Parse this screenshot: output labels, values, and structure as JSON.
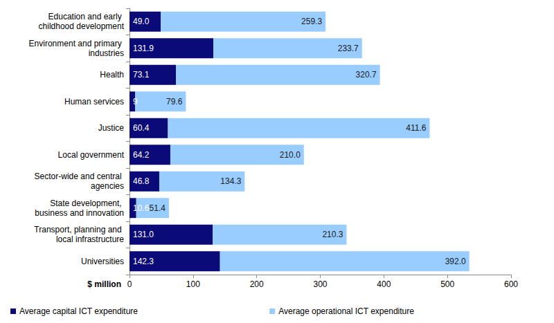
{
  "chart_data": {
    "type": "bar",
    "orientation": "horizontal",
    "stacked": true,
    "data_labels": true,
    "grid": false,
    "legend": "bottom",
    "x_label": "$ million",
    "categories": [
      "Education and early childhood development",
      "Environment and primary industries",
      "Health",
      "Human services",
      "Justice",
      "Local government",
      "Sector-wide and central agencies",
      "State development, business and innovation",
      "Transport, planning and local infrastructure",
      "Universities"
    ],
    "series": [
      {
        "name": "Average capital ICT expenditure",
        "color": "#0a0a78",
        "values": [
          49.0,
          131.9,
          73.1,
          9,
          60.4,
          64.2,
          46.8,
          10.6,
          131.0,
          142.3
        ],
        "value_labels": [
          "49.0",
          "131.9",
          "73.1",
          "9",
          "60.4",
          "64.2",
          "46.8",
          "10.6",
          "131.0",
          "142.3"
        ]
      },
      {
        "name": "Average operational ICT expenditure",
        "color": "#99ccff",
        "values": [
          259.3,
          233.7,
          320.7,
          79.6,
          411.6,
          210.0,
          134.3,
          51.4,
          210.3,
          392.0
        ],
        "value_labels": [
          "259.3",
          "233.7",
          "320.7",
          "79.6",
          "411.6",
          "210.0",
          "134.3",
          "51.4",
          "210.3",
          "392.0"
        ]
      }
    ],
    "xlim": [
      0,
      600
    ],
    "xticks": [
      0,
      100,
      200,
      300,
      400,
      500,
      600
    ]
  }
}
